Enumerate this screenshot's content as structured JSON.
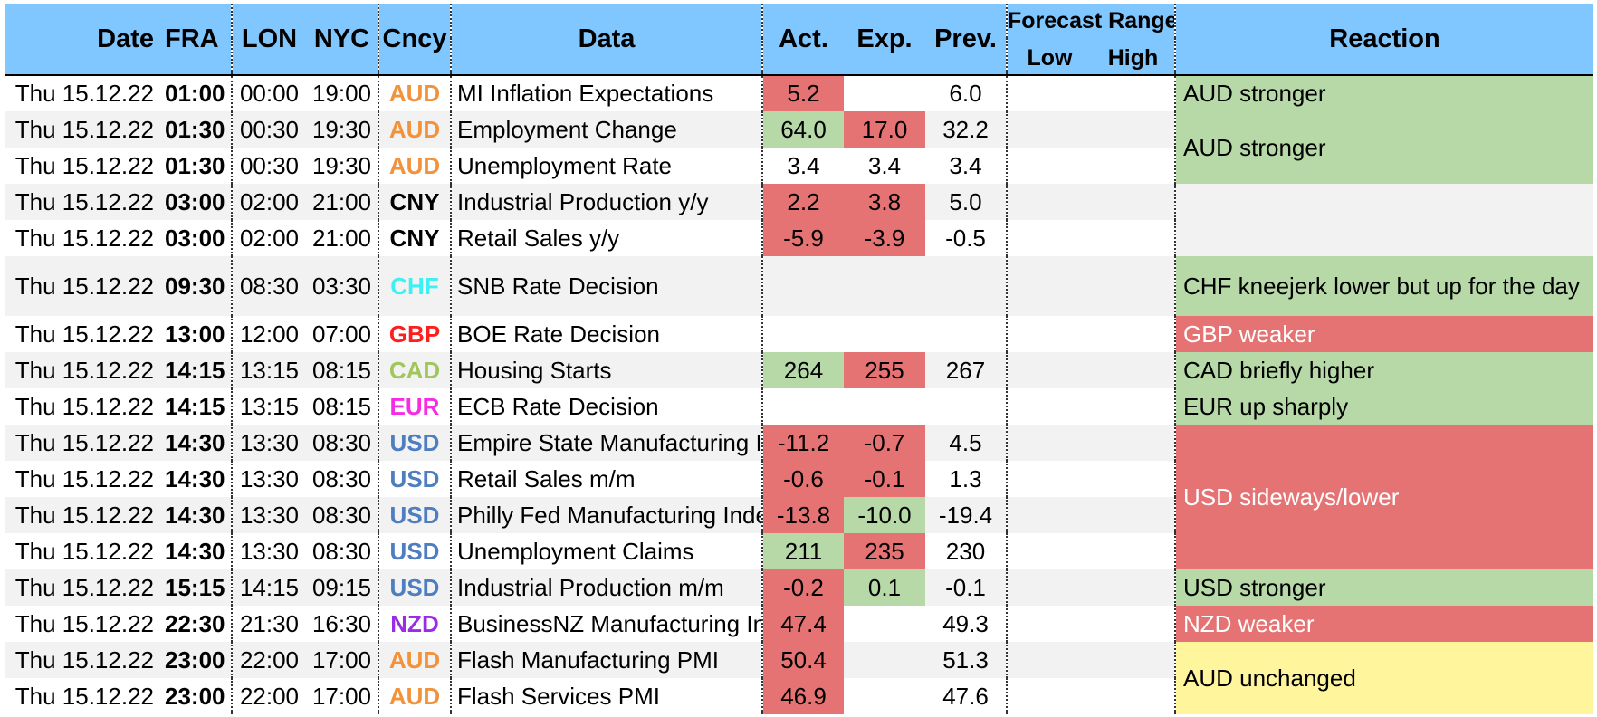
{
  "headers": {
    "date": "Date",
    "fra": "FRA",
    "lon": "LON",
    "nyc": "NYC",
    "cncy": "Cncy",
    "data": "Data",
    "act": "Act.",
    "exp": "Exp.",
    "prev": "Prev.",
    "forecast_range": "Forecast Range",
    "low": "Low",
    "high": "High",
    "reaction": "Reaction"
  },
  "rows": [
    {
      "date": "Thu 15.12.22",
      "fra": "01:00",
      "lon": "00:00",
      "nyc": "19:00",
      "ccy": "AUD",
      "data": "MI Inflation Expectations",
      "act": "5.2",
      "exp": "",
      "prev": "6.0"
    },
    {
      "date": "Thu 15.12.22",
      "fra": "01:30",
      "lon": "00:30",
      "nyc": "19:30",
      "ccy": "AUD",
      "data": "Employment Change",
      "act": "64.0",
      "exp": "17.0",
      "prev": "32.2"
    },
    {
      "date": "Thu 15.12.22",
      "fra": "01:30",
      "lon": "00:30",
      "nyc": "19:30",
      "ccy": "AUD",
      "data": "Unemployment Rate",
      "act": "3.4",
      "exp": "3.4",
      "prev": "3.4"
    },
    {
      "date": "Thu 15.12.22",
      "fra": "03:00",
      "lon": "02:00",
      "nyc": "21:00",
      "ccy": "CNY",
      "data": "Industrial Production y/y",
      "act": "2.2",
      "exp": "3.8",
      "prev": "5.0"
    },
    {
      "date": "Thu 15.12.22",
      "fra": "03:00",
      "lon": "02:00",
      "nyc": "21:00",
      "ccy": "CNY",
      "data": "Retail Sales y/y",
      "act": "-5.9",
      "exp": "-3.9",
      "prev": "-0.5"
    },
    {
      "date": "Thu 15.12.22",
      "fra": "09:30",
      "lon": "08:30",
      "nyc": "03:30",
      "ccy": "CHF",
      "data": "SNB Rate Decision",
      "act": "",
      "exp": "",
      "prev": ""
    },
    {
      "date": "Thu 15.12.22",
      "fra": "13:00",
      "lon": "12:00",
      "nyc": "07:00",
      "ccy": "GBP",
      "data": "BOE Rate Decision",
      "act": "",
      "exp": "",
      "prev": ""
    },
    {
      "date": "Thu 15.12.22",
      "fra": "14:15",
      "lon": "13:15",
      "nyc": "08:15",
      "ccy": "CAD",
      "data": "Housing Starts",
      "act": "264",
      "exp": "255",
      "prev": "267"
    },
    {
      "date": "Thu 15.12.22",
      "fra": "14:15",
      "lon": "13:15",
      "nyc": "08:15",
      "ccy": "EUR",
      "data": "ECB Rate Decision",
      "act": "",
      "exp": "",
      "prev": ""
    },
    {
      "date": "Thu 15.12.22",
      "fra": "14:30",
      "lon": "13:30",
      "nyc": "08:30",
      "ccy": "USD",
      "data": "Empire State Manufacturing Inde",
      "act": "-11.2",
      "exp": "-0.7",
      "prev": "4.5"
    },
    {
      "date": "Thu 15.12.22",
      "fra": "14:30",
      "lon": "13:30",
      "nyc": "08:30",
      "ccy": "USD",
      "data": "Retail Sales m/m",
      "act": "-0.6",
      "exp": "-0.1",
      "prev": "1.3"
    },
    {
      "date": "Thu 15.12.22",
      "fra": "14:30",
      "lon": "13:30",
      "nyc": "08:30",
      "ccy": "USD",
      "data": "Philly Fed Manufacturing Index",
      "act": "-13.8",
      "exp": "-10.0",
      "prev": "-19.4"
    },
    {
      "date": "Thu 15.12.22",
      "fra": "14:30",
      "lon": "13:30",
      "nyc": "08:30",
      "ccy": "USD",
      "data": "Unemployment Claims",
      "act": "211",
      "exp": "235",
      "prev": "230"
    },
    {
      "date": "Thu 15.12.22",
      "fra": "15:15",
      "lon": "14:15",
      "nyc": "09:15",
      "ccy": "USD",
      "data": "Industrial Production m/m",
      "act": "-0.2",
      "exp": "0.1",
      "prev": "-0.1"
    },
    {
      "date": "Thu 15.12.22",
      "fra": "22:30",
      "lon": "21:30",
      "nyc": "16:30",
      "ccy": "NZD",
      "data": "BusinessNZ Manufacturing Inde",
      "act": "47.4",
      "exp": "",
      "prev": "49.3"
    },
    {
      "date": "Thu 15.12.22",
      "fra": "23:00",
      "lon": "22:00",
      "nyc": "17:00",
      "ccy": "AUD",
      "data": "Flash Manufacturing PMI",
      "act": "50.4",
      "exp": "",
      "prev": "51.3"
    },
    {
      "date": "Thu 15.12.22",
      "fra": "23:00",
      "lon": "22:00",
      "nyc": "17:00",
      "ccy": "AUD",
      "data": "Flash Services PMI",
      "act": "46.9",
      "exp": "",
      "prev": "47.6"
    }
  ],
  "reactions": [
    "AUD stronger",
    "AUD stronger",
    "",
    "CHF kneejerk lower but up for the day",
    "GBP weaker",
    "CAD briefly higher",
    "EUR up sharply",
    "USD sideways/lower",
    "USD stronger",
    "NZD weaker",
    "AUD unchanged"
  ],
  "colors": {
    "header_bg": "#81C7FF",
    "negative": "#E57373",
    "positive": "#B7D9A8",
    "neutral": "#FFF59D",
    "AUD": "#F2933B",
    "CNY": "#000000",
    "CHF": "#3DF0F3",
    "GBP": "#FF1E1E",
    "CAD": "#A0C65C",
    "EUR": "#F62BE6",
    "USD": "#4F7EC0",
    "NZD": "#9A2CE8"
  }
}
